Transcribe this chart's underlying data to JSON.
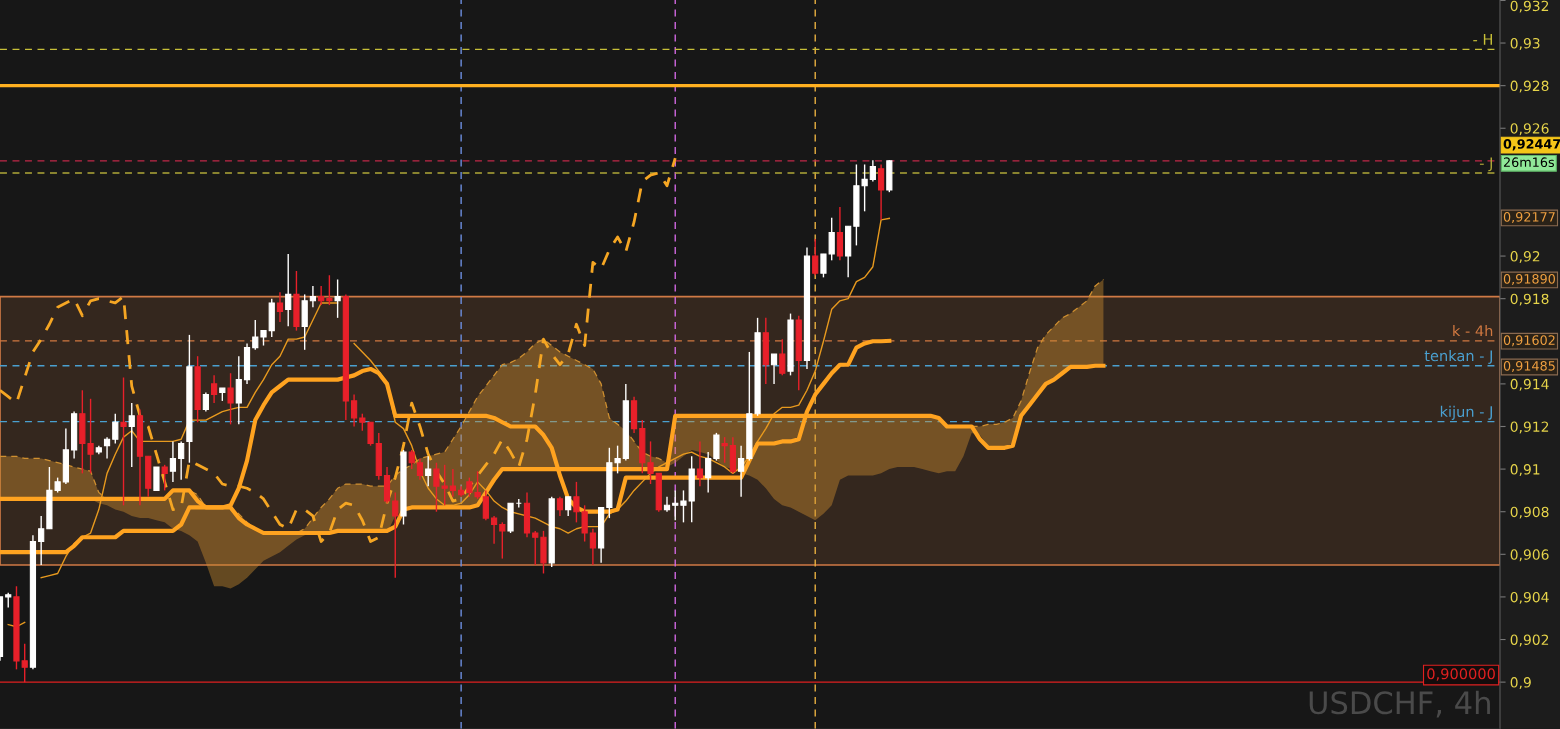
{
  "chart_data": {
    "type": "candlestick",
    "categories": [
      null,
      null,
      null,
      null,
      null,
      null,
      null,
      null,
      null,
      null,
      null,
      null,
      null,
      null,
      null,
      null,
      null,
      null,
      null,
      null,
      null,
      null,
      null,
      null,
      null,
      null,
      null,
      null,
      null,
      null,
      null,
      null,
      null,
      null,
      null,
      null,
      null,
      null,
      null,
      null,
      null,
      null,
      null,
      null,
      null,
      null,
      null,
      null,
      null,
      null,
      null,
      null,
      null,
      null,
      null,
      null,
      null,
      null,
      null,
      null,
      null,
      null,
      null,
      null,
      null,
      null,
      null,
      null,
      null,
      null,
      null,
      null,
      null,
      null,
      null,
      null,
      null,
      null,
      null,
      null,
      null,
      null,
      null,
      null,
      null,
      null,
      null,
      null,
      null,
      null,
      null,
      null,
      null,
      null,
      null,
      null,
      null,
      null,
      null,
      null,
      null,
      null,
      null,
      null,
      null,
      null,
      null,
      null,
      null,
      null,
      null,
      null,
      null,
      null,
      null,
      null,
      null,
      null,
      null,
      null,
      null,
      null,
      null,
      null,
      null,
      null,
      null,
      null,
      null,
      null,
      null,
      null,
      null,
      null,
      null
    ],
    "ohlc": [
      [
        0.9012,
        0.904,
        0.901,
        0.904
      ],
      [
        0.904,
        0.9042,
        0.9035,
        0.9041
      ],
      [
        0.904,
        0.9045,
        0.9006,
        0.901
      ],
      [
        0.901,
        0.9018,
        0.9,
        0.9007
      ],
      [
        0.9007,
        0.9069,
        0.9006,
        0.9066
      ],
      [
        0.9066,
        0.9078,
        0.9055,
        0.9072
      ],
      [
        0.9072,
        0.9101,
        0.9072,
        0.909
      ],
      [
        0.909,
        0.9096,
        0.9089,
        0.9094
      ],
      [
        0.9094,
        0.9119,
        0.9093,
        0.9109
      ],
      [
        0.9109,
        0.9127,
        0.9105,
        0.9126
      ],
      [
        0.9126,
        0.9137,
        0.9098,
        0.9112
      ],
      [
        0.9112,
        0.9133,
        0.9098,
        0.9107
      ],
      [
        0.9108,
        0.9111,
        0.9107,
        0.911
      ],
      [
        0.9111,
        0.9115,
        0.9105,
        0.9114
      ],
      [
        0.9114,
        0.9126,
        0.9112,
        0.9122
      ],
      [
        0.9122,
        0.9143,
        0.9083,
        0.912
      ],
      [
        0.912,
        0.9131,
        0.9101,
        0.9125
      ],
      [
        0.9125,
        0.9128,
        0.9083,
        0.9106
      ],
      [
        0.9106,
        0.9106,
        0.9087,
        0.9091
      ],
      [
        0.909,
        0.9101,
        0.909,
        0.9101
      ],
      [
        0.9101,
        0.9102,
        0.909,
        0.9098
      ],
      [
        0.9099,
        0.9113,
        0.9094,
        0.9105
      ],
      [
        0.9105,
        0.9113,
        0.9095,
        0.9112
      ],
      [
        0.9113,
        0.9163,
        0.9103,
        0.9148
      ],
      [
        0.9148,
        0.9153,
        0.9122,
        0.9128
      ],
      [
        0.9128,
        0.9136,
        0.9127,
        0.9135
      ],
      [
        0.914,
        0.9144,
        0.9131,
        0.9135
      ],
      [
        0.9136,
        0.9138,
        0.9132,
        0.9138
      ],
      [
        0.9138,
        0.9145,
        0.9121,
        0.9131
      ],
      [
        0.9131,
        0.9153,
        0.9121,
        0.9142
      ],
      [
        0.9142,
        0.9159,
        0.914,
        0.9157
      ],
      [
        0.9157,
        0.917,
        0.9156,
        0.9162
      ],
      [
        0.9162,
        0.9165,
        0.9158,
        0.9165
      ],
      [
        0.9165,
        0.918,
        0.9162,
        0.9178
      ],
      [
        0.9178,
        0.9183,
        0.9169,
        0.9174
      ],
      [
        0.9175,
        0.9201,
        0.9167,
        0.9182
      ],
      [
        0.9182,
        0.9193,
        0.9165,
        0.9167
      ],
      [
        0.9167,
        0.9182,
        0.9156,
        0.9179
      ],
      [
        0.9179,
        0.9186,
        0.9176,
        0.9181
      ],
      [
        0.9181,
        0.9186,
        0.9177,
        0.9179
      ],
      [
        0.918,
        0.9191,
        0.9177,
        0.9179
      ],
      [
        0.9179,
        0.9189,
        0.9171,
        0.9181
      ],
      [
        0.9181,
        0.9182,
        0.9123,
        0.9132
      ],
      [
        0.9132,
        0.9135,
        0.912,
        0.9124
      ],
      [
        0.9124,
        0.9126,
        0.9118,
        0.9122
      ],
      [
        0.9122,
        0.9122,
        0.9111,
        0.9112
      ],
      [
        0.9112,
        0.9117,
        0.9095,
        0.9097
      ],
      [
        0.9097,
        0.9101,
        0.9084,
        0.9085
      ],
      [
        0.9085,
        0.9089,
        0.9049,
        0.9078
      ],
      [
        0.9078,
        0.9109,
        0.9074,
        0.9108
      ],
      [
        0.9108,
        0.9109,
        0.91,
        0.9103
      ],
      [
        0.9103,
        0.9105,
        0.9095,
        0.9097
      ],
      [
        0.9097,
        0.9106,
        0.9092,
        0.91
      ],
      [
        0.91,
        0.9103,
        0.908,
        0.9092
      ],
      [
        0.9092,
        0.9102,
        0.9083,
        0.9091
      ],
      [
        0.9092,
        0.91,
        0.9087,
        0.909
      ],
      [
        0.909,
        0.9092,
        0.9087,
        0.9088
      ],
      [
        0.9094,
        0.9096,
        0.9087,
        0.9089
      ],
      [
        0.9089,
        0.9099,
        0.9086,
        0.9087
      ],
      [
        0.9087,
        0.909,
        0.9076,
        0.9077
      ],
      [
        0.9077,
        0.9078,
        0.9065,
        0.9074
      ],
      [
        0.9074,
        0.9075,
        0.9058,
        0.9071
      ],
      [
        0.9071,
        0.9084,
        0.907,
        0.9084
      ],
      [
        0.9084,
        0.9086,
        0.9082,
        0.9084
      ],
      [
        0.9084,
        0.9089,
        0.9068,
        0.907
      ],
      [
        0.907,
        0.9071,
        0.9055,
        0.9068
      ],
      [
        0.9068,
        0.9071,
        0.9051,
        0.9056
      ],
      [
        0.9056,
        0.9087,
        0.9054,
        0.9086
      ],
      [
        0.9086,
        0.9087,
        0.9078,
        0.9081
      ],
      [
        0.9081,
        0.9087,
        0.9078,
        0.9087
      ],
      [
        0.9087,
        0.9094,
        0.9075,
        0.908
      ],
      [
        0.908,
        0.9083,
        0.9066,
        0.907
      ],
      [
        0.907,
        0.9072,
        0.9055,
        0.9063
      ],
      [
        0.9063,
        0.9082,
        0.9056,
        0.9082
      ],
      [
        0.9082,
        0.911,
        0.9077,
        0.9103
      ],
      [
        0.9103,
        0.9111,
        0.9098,
        0.9105
      ],
      [
        0.9105,
        0.914,
        0.9104,
        0.9132
      ],
      [
        0.9132,
        0.9134,
        0.9117,
        0.9119
      ],
      [
        0.9119,
        0.9123,
        0.9098,
        0.9103
      ],
      [
        0.9103,
        0.9113,
        0.9093,
        0.9098
      ],
      [
        0.9098,
        0.9098,
        0.908,
        0.9081
      ],
      [
        0.9081,
        0.9087,
        0.908,
        0.9083
      ],
      [
        0.9083,
        0.909,
        0.9076,
        0.9084
      ],
      [
        0.9083,
        0.909,
        0.9075,
        0.9085
      ],
      [
        0.9085,
        0.9106,
        0.9075,
        0.91
      ],
      [
        0.91,
        0.9113,
        0.9092,
        0.9096
      ],
      [
        0.9096,
        0.9108,
        0.9089,
        0.9105
      ],
      [
        0.9105,
        0.9117,
        0.9104,
        0.9116
      ],
      [
        0.9112,
        0.9115,
        0.9103,
        0.9111
      ],
      [
        0.9111,
        0.9115,
        0.9098,
        0.9099
      ],
      [
        0.9099,
        0.9111,
        0.9087,
        0.9105
      ],
      [
        0.9105,
        0.9155,
        0.9104,
        0.9126
      ],
      [
        0.9126,
        0.9171,
        0.9125,
        0.9164
      ],
      [
        0.9164,
        0.9171,
        0.914,
        0.9149
      ],
      [
        0.9149,
        0.9154,
        0.914,
        0.9154
      ],
      [
        0.9154,
        0.9161,
        0.9144,
        0.9145
      ],
      [
        0.9146,
        0.9173,
        0.9144,
        0.917
      ],
      [
        0.917,
        0.9172,
        0.9137,
        0.9151
      ],
      [
        0.9151,
        0.9204,
        0.9147,
        0.92
      ],
      [
        0.92,
        0.9208,
        0.9191,
        0.9192
      ],
      [
        0.9192,
        0.9201,
        0.919,
        0.9201
      ],
      [
        0.9201,
        0.9218,
        0.9198,
        0.9211
      ],
      [
        0.9211,
        0.9223,
        0.9198,
        0.92
      ],
      [
        0.92,
        0.9214,
        0.919,
        0.9214
      ],
      [
        0.9214,
        0.9243,
        0.9205,
        0.9233
      ],
      [
        0.9233,
        0.9243,
        0.9221,
        0.9236
      ],
      [
        0.9236,
        0.9245,
        0.9235,
        0.9242
      ],
      [
        0.9241,
        0.9243,
        0.9217,
        0.9231
      ],
      [
        0.9231,
        0.9245,
        0.923,
        0.92447
      ],
      null,
      null,
      null,
      null,
      null,
      null,
      null,
      null,
      null,
      null,
      null,
      null,
      null,
      null,
      null,
      null,
      null,
      null,
      null,
      null,
      null,
      null,
      null,
      null,
      null,
      null
    ],
    "colors": [
      "#ffffff",
      "#ffffff",
      "#e8202a",
      "#e8202a",
      "#ffffff",
      "#ffffff",
      "#ffffff",
      "#ffffff",
      "#ffffff",
      "#ffffff",
      "#e8202a",
      "#e8202a",
      "#ffffff",
      "#ffffff",
      "#ffffff",
      "#e8202a",
      "#ffffff",
      "#e8202a",
      "#e8202a",
      "#ffffff",
      "#e8202a",
      "#ffffff",
      "#ffffff",
      "#ffffff",
      "#e8202a",
      "#ffffff",
      "#e8202a",
      "#ffffff",
      "#e8202a",
      "#ffffff",
      "#ffffff",
      "#ffffff",
      "#ffffff",
      "#ffffff",
      "#e8202a",
      "#ffffff",
      "#e8202a",
      "#ffffff",
      "#ffffff",
      "#e8202a",
      "#e8202a",
      "#ffffff",
      "#e8202a",
      "#e8202a",
      "#e8202a",
      "#e8202a",
      "#e8202a",
      "#e8202a",
      "#e8202a",
      "#ffffff",
      "#e8202a",
      "#e8202a",
      "#ffffff",
      "#e8202a",
      "#e8202a",
      "#e8202a",
      "#e8202a",
      "#e8202a",
      "#e8202a",
      "#e8202a",
      "#e8202a",
      "#e8202a",
      "#ffffff",
      "#ffffff",
      "#e8202a",
      "#e8202a",
      "#e8202a",
      "#ffffff",
      "#e8202a",
      "#ffffff",
      "#e8202a",
      "#e8202a",
      "#e8202a",
      "#ffffff",
      "#ffffff",
      "#ffffff",
      "#ffffff",
      "#e8202a",
      "#e8202a",
      "#e8202a",
      "#e8202a",
      "#ffffff",
      "#ffffff",
      "#ffffff",
      "#ffffff",
      "#e8202a",
      "#ffffff",
      "#ffffff",
      "#e8202a",
      "#e8202a",
      "#ffffff",
      "#ffffff",
      "#ffffff",
      "#e8202a",
      "#ffffff",
      "#e8202a",
      "#ffffff",
      "#e8202a",
      "#ffffff",
      "#e8202a",
      "#ffffff",
      "#ffffff",
      "#e8202a",
      "#ffffff",
      "#ffffff",
      "#ffffff",
      "#ffffff",
      "#e8202a",
      "#ffffff",
      null,
      null,
      null,
      null,
      null,
      null,
      null,
      null,
      null,
      null,
      null,
      null,
      null,
      null,
      null,
      null,
      null,
      null,
      null,
      null,
      null,
      null,
      null,
      null,
      null,
      null
    ],
    "series": [
      {
        "type": "line",
        "color": "#d09030",
        "line_style": "dashed",
        "values": [
          0.9106,
          0.9106,
          0.9106,
          0.9105,
          0.9105,
          0.9105,
          0.9104,
          0.9103,
          0.9102,
          0.9101,
          0.91,
          0.9099,
          0.9089,
          0.9086,
          0.9086,
          0.9086,
          0.9086,
          0.9086,
          0.9086,
          0.9086,
          0.9086,
          0.909,
          0.909,
          0.909,
          0.9088,
          0.9082,
          0.9082,
          0.9082,
          0.9082,
          0.9079,
          0.9075,
          0.9072,
          0.907,
          0.907,
          0.907,
          0.907,
          0.907,
          0.9072,
          0.9077,
          0.9082,
          0.9086,
          0.9091,
          0.9093,
          0.9093,
          0.9093,
          0.9092,
          0.9092,
          0.9092,
          0.9097,
          0.91,
          0.9102,
          0.9105,
          0.9106,
          0.9107,
          0.9108,
          0.9114,
          0.912,
          0.9127,
          0.9134,
          0.9139,
          0.9144,
          0.9149,
          0.915,
          0.9152,
          0.9155,
          0.9159,
          0.9161,
          0.9158,
          0.9155,
          0.9153,
          0.9151,
          0.9149,
          0.9147,
          0.914,
          0.9124,
          0.9121,
          0.9118,
          0.9113,
          0.9108,
          0.9106,
          0.9105,
          0.9103,
          0.9125,
          0.9125,
          0.9125,
          0.9125,
          0.9125,
          0.9125,
          0.9125,
          0.9125,
          0.9125,
          0.9125,
          0.9125,
          0.9125,
          0.9125,
          0.9125,
          0.9125,
          0.9125,
          0.9125,
          0.9125,
          0.9125,
          0.9125,
          0.9125,
          0.9125,
          0.9125,
          0.9125,
          0.9125,
          0.9125,
          0.9125,
          0.9125,
          0.9125,
          0.9125,
          0.9125,
          0.9125,
          0.9124,
          0.912,
          0.912,
          0.912,
          0.912,
          0.912,
          0.9121,
          0.9121,
          0.9122,
          0.9124,
          0.9132,
          0.9145,
          0.9157,
          0.9163,
          0.9167,
          0.9171,
          0.9173,
          0.9176,
          0.9179,
          0.9186,
          0.9189
        ],
        "upper": [
          0.9106,
          0.9106,
          0.9106,
          0.9105,
          0.9105,
          0.9105,
          0.9104,
          0.9103,
          0.9102,
          0.9101,
          0.91,
          0.9099,
          0.9089,
          0.9086,
          0.9086,
          0.9086,
          0.9086,
          0.9086,
          0.9086,
          0.9086,
          0.9086,
          0.909,
          0.909,
          0.909,
          0.9088,
          0.9082,
          0.9082,
          0.9082,
          0.9082,
          0.9079,
          0.9075,
          0.9072,
          0.907,
          0.907,
          0.907,
          0.907,
          0.907,
          0.9072,
          0.9077,
          0.9082,
          0.9086,
          0.9091,
          0.9093,
          0.9093,
          0.9093,
          0.9092,
          0.9092,
          0.9092,
          0.9097,
          0.91,
          0.9102,
          0.9105,
          0.9106,
          0.9107,
          0.9108,
          0.9114,
          0.912,
          0.9127,
          0.9134,
          0.9139,
          0.9144,
          0.9149,
          0.915,
          0.9152,
          0.9155,
          0.9159,
          0.9161,
          0.9158,
          0.9155,
          0.9153,
          0.9151,
          0.9149,
          0.9147,
          0.914,
          0.9124,
          0.9121,
          0.9118,
          0.9113,
          0.9108,
          0.9106,
          0.9105,
          0.9103,
          0.9125,
          0.9125,
          0.9125,
          0.9125,
          0.9125,
          0.9125,
          0.9125,
          0.9125,
          0.9125,
          0.9125,
          0.9125,
          0.9125,
          0.9125,
          0.9125,
          0.9125,
          0.9125,
          0.9125,
          0.9125,
          0.9125,
          0.9125,
          0.9125,
          0.9125,
          0.9125,
          0.9125,
          0.9125,
          0.9125,
          0.9125,
          0.9125,
          0.9125,
          0.9125,
          0.9125,
          0.9125,
          0.9124,
          0.912,
          0.912,
          0.912,
          0.912,
          0.912,
          0.9121,
          0.9121,
          0.9122,
          0.9124,
          0.9132,
          0.9145,
          0.9157,
          0.9163,
          0.9167,
          0.9171,
          0.9173,
          0.9176,
          0.9179,
          0.9186,
          0.9189
        ],
        "lower": [
          0.9086,
          0.9086,
          0.9086,
          0.9086,
          0.9086,
          0.9086,
          0.9086,
          0.9086,
          0.9086,
          0.9086,
          0.9086,
          0.9086,
          0.9084,
          0.9083,
          0.9081,
          0.908,
          0.9078,
          0.9077,
          0.9077,
          0.9076,
          0.9075,
          0.9072,
          0.9071,
          0.9069,
          0.9066,
          0.9056,
          0.9045,
          0.9045,
          0.9044,
          0.9046,
          0.9049,
          0.9053,
          0.9057,
          0.9059,
          0.9061,
          0.9064,
          0.9067,
          0.9069,
          0.907,
          0.907,
          0.907,
          0.907,
          0.907,
          0.907,
          0.907,
          0.907,
          0.907,
          0.907,
          0.9078,
          0.9081,
          0.9082,
          0.9082,
          0.9082,
          0.9082,
          0.9082,
          0.9082,
          0.9082,
          0.9082,
          0.9084,
          0.909,
          0.9096,
          0.91,
          0.91,
          0.91,
          0.91,
          0.91,
          0.91,
          0.91,
          0.91,
          0.91,
          0.91,
          0.91,
          0.91,
          0.91,
          0.91,
          0.91,
          0.91,
          0.91,
          0.91,
          0.91,
          0.91,
          0.9101,
          0.9103,
          0.9106,
          0.9109,
          0.9108,
          0.9107,
          0.9104,
          0.9101,
          0.91,
          0.9098,
          0.9097,
          0.9095,
          0.9091,
          0.9086,
          0.9083,
          0.9082,
          0.908,
          0.9078,
          0.9076,
          0.9079,
          0.9083,
          0.9095,
          0.9097,
          0.9097,
          0.9097,
          0.9097,
          0.9098,
          0.91,
          0.9101,
          0.9101,
          0.9101,
          0.91,
          0.9099,
          0.9098,
          0.9099,
          0.9099,
          0.9106,
          0.9117,
          0.9116,
          0.9111,
          0.911,
          0.911,
          0.9112,
          0.9125,
          0.9131,
          0.9135,
          0.914,
          0.9142,
          0.9144,
          0.9147,
          0.9148,
          0.91485,
          0.91485,
          0.91485
        ]
      },
      {
        "type": "line",
        "color": "#f5a623",
        "line_style": "dashed",
        "values": [
          0.9137,
          0.9134,
          0.9131,
          0.9143,
          0.9155,
          0.9161,
          0.9168,
          0.9176,
          0.9178,
          0.918,
          0.9172,
          0.9179,
          0.918,
          0.9179,
          0.9178,
          0.9181,
          0.9139,
          0.9125,
          0.912,
          0.9107,
          0.9094,
          0.9081,
          0.9082,
          0.9104,
          0.9102,
          0.91,
          0.9098,
          0.9093,
          0.9092,
          0.9092,
          0.9091,
          0.9089,
          0.9086,
          0.908,
          0.9074,
          0.9072,
          0.9081,
          0.9081,
          0.9078,
          0.9066,
          0.907,
          0.9081,
          0.9084,
          0.9083,
          0.9076,
          0.9066,
          0.9068,
          0.9084,
          0.9096,
          0.9111,
          0.9131,
          0.912,
          0.9107,
          0.9099,
          0.9093,
          0.9085,
          0.9086,
          0.9092,
          0.9097,
          0.9102,
          0.9107,
          0.9114,
          0.9108,
          0.9101,
          0.9114,
          0.9135,
          0.9161,
          0.9154,
          0.9149,
          0.9154,
          0.9168,
          0.9158,
          0.9197,
          0.9194,
          0.9203,
          0.9209,
          0.9202,
          0.9216,
          0.9235,
          0.9238,
          0.9239,
          0.9233,
          0.9246,
          null,
          null,
          null,
          null,
          null,
          null,
          null,
          null,
          null,
          null,
          null,
          null,
          null,
          null,
          null,
          null,
          null,
          null,
          null,
          null,
          null,
          null,
          null,
          null,
          null,
          null,
          null,
          null,
          null,
          null,
          null,
          null,
          null,
          null,
          null,
          null,
          null,
          null,
          null,
          null,
          null,
          null,
          null,
          null,
          null,
          null,
          null,
          null,
          null,
          null,
          null,
          null
        ]
      },
      {
        "type": "line",
        "color": "#e89a1e",
        "line_style": "solid",
        "values": [
          null,
          0.9027,
          0.9026,
          0.9028,
          null,
          0.9049,
          0.905,
          0.9051,
          0.9059,
          0.9065,
          0.9068,
          0.907,
          0.9081,
          0.9098,
          0.9107,
          0.9115,
          0.9118,
          0.9113,
          0.9113,
          0.9113,
          0.9113,
          0.9113,
          0.9114,
          0.9123,
          0.9123,
          0.9123,
          0.9125,
          0.9127,
          0.9128,
          0.9129,
          0.9129,
          0.9136,
          0.9142,
          0.9149,
          0.9153,
          0.9161,
          0.9161,
          0.9162,
          0.917,
          0.9178,
          0.9178,
          0.9178,
          null,
          0.9159,
          0.9155,
          0.9151,
          0.9146,
          0.914,
          0.9122,
          0.9119,
          0.9111,
          0.9099,
          0.9091,
          0.9086,
          0.9083,
          0.9083,
          0.9084,
          0.9088,
          0.9094,
          0.909,
          0.9085,
          0.9082,
          0.908,
          0.9079,
          0.9078,
          0.9077,
          0.9075,
          0.9073,
          0.9072,
          0.907,
          0.9072,
          0.9073,
          0.9073,
          0.9073,
          0.9079,
          0.9081,
          0.9085,
          0.909,
          0.9094,
          0.9098,
          0.9101,
          0.9103,
          0.9105,
          0.9107,
          0.9108,
          0.9106,
          0.9105,
          0.9103,
          0.9101,
          0.9098,
          0.9101,
          0.9106,
          0.9113,
          0.9119,
          0.9126,
          0.9129,
          0.9129,
          0.913,
          0.9137,
          0.9146,
          0.916,
          0.9175,
          0.9179,
          0.918,
          0.9188,
          0.919,
          0.9195,
          0.9217,
          0.92177,
          null,
          null,
          null,
          null,
          null,
          null,
          null,
          null,
          null,
          null,
          null,
          null,
          null,
          null,
          null,
          null,
          null,
          null,
          null,
          null,
          null,
          null,
          null,
          null,
          null,
          null
        ]
      },
      {
        "type": "line",
        "color": "#ffa320",
        "line_style": "solid",
        "values": [
          0.9086,
          0.9086,
          0.9086,
          0.9086,
          0.9086,
          0.9086,
          0.9086,
          0.9086,
          0.9086,
          0.9086,
          0.9086,
          0.9086,
          0.9086,
          0.9086,
          0.9086,
          0.9086,
          0.9086,
          0.9086,
          0.9086,
          0.9086,
          0.9086,
          0.909,
          0.909,
          0.909,
          0.9085,
          0.9082,
          0.9082,
          0.9082,
          0.9083,
          0.9091,
          0.9104,
          0.9123,
          0.913,
          0.9136,
          0.9139,
          0.9142,
          0.9142,
          0.9142,
          0.9142,
          0.9142,
          0.9142,
          0.9142,
          0.9143,
          0.9144,
          0.9146,
          0.9147,
          0.9145,
          0.914,
          0.9125,
          0.9125,
          0.9125,
          0.9125,
          0.9125,
          0.9125,
          0.9125,
          0.9125,
          0.9125,
          0.9125,
          0.9125,
          0.9125,
          0.9124,
          0.9122,
          0.912,
          0.912,
          0.912,
          0.912,
          0.9116,
          0.911,
          0.9097,
          0.9086,
          0.9082,
          0.908,
          0.908,
          0.908,
          0.908,
          0.9081,
          0.9096,
          0.9096,
          0.9096,
          0.9096,
          0.9096,
          0.9096,
          0.9096,
          0.9096,
          0.9096,
          0.9096,
          0.9096,
          0.9096,
          0.9096,
          0.9096,
          0.9096,
          0.9104,
          0.9112,
          0.9112,
          0.9112,
          0.9113,
          0.9113,
          0.9114,
          0.9127,
          0.9135,
          0.914,
          0.9145,
          0.9149,
          0.9149,
          0.9157,
          0.9159,
          0.916,
          0.916,
          0.91602,
          null,
          null,
          null,
          null,
          null,
          null,
          null,
          null,
          null,
          null,
          null,
          null,
          null,
          null,
          null,
          null,
          null,
          null,
          null,
          null,
          null,
          null,
          null,
          null,
          null,
          null
        ]
      },
      {
        "type": "line",
        "color": "#ffa320",
        "line_style": "solid",
        "values": [
          0.9061,
          0.9061,
          0.9061,
          0.9061,
          0.9061,
          0.9061,
          0.9061,
          0.9061,
          0.9061,
          0.9064,
          0.9068,
          0.9068,
          0.9068,
          0.9068,
          0.9068,
          0.9071,
          0.9071,
          0.9071,
          0.9071,
          0.9071,
          0.9071,
          0.9071,
          0.9074,
          0.9082,
          0.9082,
          0.9082,
          0.9082,
          0.9082,
          0.9082,
          0.9077,
          0.9074,
          0.9072,
          0.907,
          0.907,
          0.907,
          0.907,
          0.907,
          0.907,
          0.907,
          0.907,
          0.907,
          0.9071,
          0.9071,
          0.9071,
          0.9071,
          0.9071,
          0.9071,
          0.9071,
          0.9073,
          0.9081,
          0.9082,
          0.9082,
          0.9082,
          0.9082,
          0.9082,
          0.9082,
          0.9082,
          0.9082,
          0.9083,
          0.9089,
          0.9095,
          0.91,
          0.91,
          0.91,
          0.91,
          0.91,
          0.91,
          0.91,
          0.91,
          0.91,
          0.91,
          0.91,
          0.91,
          0.91,
          0.91,
          0.91,
          0.91,
          0.91,
          0.91,
          0.91,
          0.91,
          0.91,
          0.9125,
          0.9125,
          0.9125,
          0.9125,
          0.9125,
          0.9125,
          0.9125,
          0.9125,
          0.9125,
          0.9125,
          0.9125,
          0.9125,
          0.9125,
          0.9125,
          0.9125,
          0.9125,
          0.9125,
          0.9125,
          0.9125,
          0.9125,
          0.9125,
          0.9125,
          0.9125,
          0.9125,
          0.9125,
          0.9125,
          0.9125,
          0.9125,
          0.9125,
          0.9125,
          0.9125,
          0.9125,
          0.9124,
          0.912,
          0.912,
          0.912,
          0.912,
          0.9114,
          0.911,
          0.911,
          0.911,
          0.9111,
          0.9125,
          0.913,
          0.9135,
          0.914,
          0.9142,
          0.9145,
          0.9148,
          0.9148,
          0.9148,
          0.91485,
          0.91485
        ]
      }
    ],
    "ylim": [
      0.8978,
      0.93202
    ],
    "yticks": [
      {
        "value": 0.9,
        "label": "0,9"
      },
      {
        "value": 0.902,
        "label": "0,902"
      },
      {
        "value": 0.904,
        "label": "0,904"
      },
      {
        "value": 0.906,
        "label": "0,906"
      },
      {
        "value": 0.908,
        "label": "0,908"
      },
      {
        "value": 0.91,
        "label": "0,91"
      },
      {
        "value": 0.912,
        "label": "0,912"
      },
      {
        "value": 0.914,
        "label": "0,914"
      },
      {
        "value": 0.918,
        "label": "0,918"
      },
      {
        "value": 0.92,
        "label": "0,92"
      },
      {
        "value": 0.926,
        "label": "0,926"
      },
      {
        "value": 0.928,
        "label": "0,928"
      },
      {
        "value": 0.93,
        "label": "0,93"
      },
      {
        "value": 0.932,
        "label": "0,932"
      }
    ],
    "bands": [
      {
        "axis": "y",
        "from": 0.9055,
        "to": 0.9181,
        "color": "#d07a45"
      }
    ],
    "ref_lines": [
      {
        "axis": "y",
        "value": 0.9297,
        "label": "- H",
        "color": "#c8c038",
        "line_style": "dashed"
      },
      {
        "axis": "y",
        "value": 0.928,
        "color": "#ffb020",
        "line_style": "solid"
      },
      {
        "axis": "y",
        "value": 0.92447,
        "color": "#c02848",
        "line_style": "dashed"
      },
      {
        "axis": "y",
        "value": 0.9239,
        "label": "- J",
        "color": "#b0a838",
        "line_style": "dashed"
      },
      {
        "axis": "y",
        "value": 0.91602,
        "label": "k - 4h",
        "color": "#d07840",
        "line_style": "dashed"
      },
      {
        "axis": "y",
        "value": 0.91485,
        "label": "tenkan - J",
        "color": "#4aa0d0",
        "line_style": "dashed"
      },
      {
        "axis": "y",
        "value": 0.91223,
        "label": "kijun - J",
        "color": "#4aa0d0",
        "line_style": "dashed"
      },
      {
        "axis": "y",
        "value": 0.9,
        "label": "0,900000",
        "color": "#e02020",
        "line_style": "solid"
      }
    ],
    "annotations": [
      "0,92447",
      "26m16s",
      "0,92177",
      "0,91890",
      "0,91602",
      "0,91485",
      "USDCHF, 4h"
    ],
    "tick_labels": "y",
    "grid": false
  }
}
